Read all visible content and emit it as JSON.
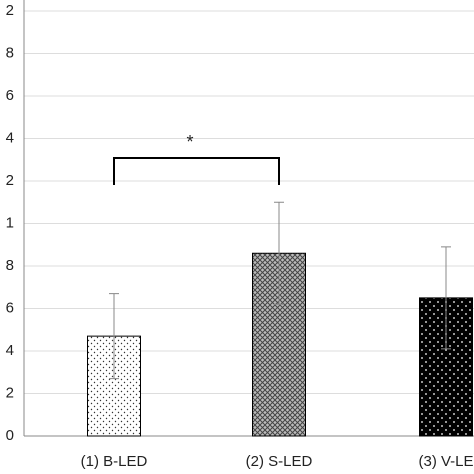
{
  "chart_data": {
    "type": "bar",
    "categories": [
      "(1) B-LED",
      "(2) S-LED",
      "(3) V-LE"
    ],
    "values": [
      0.47,
      0.86,
      0.65
    ],
    "errors": [
      0.2,
      0.24,
      0.24
    ],
    "ylim": [
      0,
      2.0
    ],
    "yticks": [
      0,
      {
        "value": 0.2,
        "label": "2"
      },
      {
        "value": 0.4,
        "label": "4"
      },
      {
        "value": 0.6,
        "label": "6"
      },
      {
        "value": 0.8,
        "label": "8"
      },
      {
        "value": 1.0,
        "label": "1"
      },
      {
        "value": 1.2,
        "label": "2"
      },
      {
        "value": 1.4,
        "label": "4"
      },
      {
        "value": 1.6,
        "label": "6"
      },
      {
        "value": 1.8,
        "label": "8"
      },
      {
        "value": 2.0,
        "label": "2"
      }
    ],
    "grid": true,
    "annotation": "*"
  }
}
